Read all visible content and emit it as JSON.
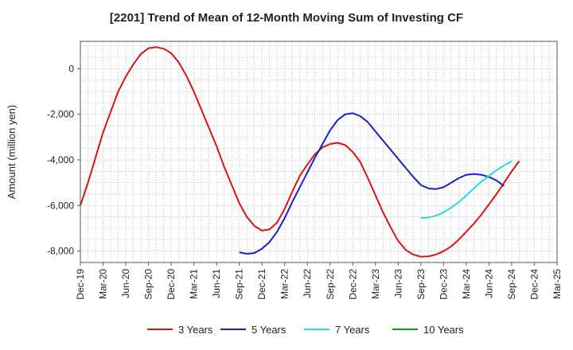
{
  "chart_data": {
    "type": "line",
    "title": "[2201]  Trend of Mean of 12-Month Moving Sum of Investing CF",
    "xlabel": "",
    "ylabel": "Amount (million yen)",
    "ylim": [
      -8500,
      1200
    ],
    "yticks": [
      0,
      -2000,
      -4000,
      -6000,
      -8000
    ],
    "ytick_labels": [
      "0",
      "-2,000",
      "-4,000",
      "-6,000",
      "-8,000"
    ],
    "x_categories": [
      "Dec-19",
      "Mar-20",
      "Jun-20",
      "Sep-20",
      "Dec-20",
      "Mar-21",
      "Jun-21",
      "Sep-21",
      "Dec-21",
      "Mar-22",
      "Jun-22",
      "Sep-22",
      "Dec-22",
      "Mar-23",
      "Jun-23",
      "Sep-23",
      "Dec-23",
      "Mar-24",
      "Jun-24",
      "Sep-24",
      "Dec-24",
      "Mar-25"
    ],
    "x_note": "x values are month indices from Dec-19 (0) to Mar-25 (63)",
    "grid": true,
    "legend_position": "bottom",
    "series": [
      {
        "name": "3 Years",
        "color": "#dd1111",
        "points": [
          [
            0,
            -6000
          ],
          [
            1,
            -5000
          ],
          [
            2,
            -3900
          ],
          [
            3,
            -2800
          ],
          [
            4,
            -1900
          ],
          [
            5,
            -1000
          ],
          [
            6,
            -350
          ],
          [
            7,
            200
          ],
          [
            8,
            650
          ],
          [
            9,
            900
          ],
          [
            10,
            950
          ],
          [
            11,
            880
          ],
          [
            12,
            680
          ],
          [
            13,
            280
          ],
          [
            14,
            -300
          ],
          [
            15,
            -1000
          ],
          [
            16,
            -1800
          ],
          [
            17,
            -2600
          ],
          [
            18,
            -3400
          ],
          [
            19,
            -4300
          ],
          [
            20,
            -5100
          ],
          [
            21,
            -5900
          ],
          [
            22,
            -6500
          ],
          [
            23,
            -6900
          ],
          [
            24,
            -7100
          ],
          [
            25,
            -7050
          ],
          [
            26,
            -6750
          ],
          [
            27,
            -6150
          ],
          [
            28,
            -5400
          ],
          [
            29,
            -4700
          ],
          [
            30,
            -4200
          ],
          [
            31,
            -3750
          ],
          [
            32,
            -3450
          ],
          [
            33,
            -3300
          ],
          [
            34,
            -3250
          ],
          [
            35,
            -3350
          ],
          [
            36,
            -3650
          ],
          [
            37,
            -4100
          ],
          [
            38,
            -4800
          ],
          [
            39,
            -5550
          ],
          [
            40,
            -6300
          ],
          [
            41,
            -6950
          ],
          [
            42,
            -7550
          ],
          [
            43,
            -7950
          ],
          [
            44,
            -8150
          ],
          [
            45,
            -8250
          ],
          [
            46,
            -8230
          ],
          [
            47,
            -8150
          ],
          [
            48,
            -8000
          ],
          [
            49,
            -7800
          ],
          [
            50,
            -7500
          ],
          [
            51,
            -7150
          ],
          [
            52,
            -6800
          ],
          [
            53,
            -6400
          ],
          [
            54,
            -5950
          ],
          [
            55,
            -5500
          ],
          [
            56,
            -5000
          ],
          [
            57,
            -4500
          ],
          [
            58,
            -4050
          ]
        ]
      },
      {
        "name": "5 Years",
        "color": "#1122cc",
        "points": [
          [
            21,
            -8050
          ],
          [
            22,
            -8120
          ],
          [
            23,
            -8080
          ],
          [
            24,
            -7900
          ],
          [
            25,
            -7600
          ],
          [
            26,
            -7150
          ],
          [
            27,
            -6550
          ],
          [
            28,
            -5850
          ],
          [
            29,
            -5200
          ],
          [
            30,
            -4550
          ],
          [
            31,
            -3900
          ],
          [
            32,
            -3300
          ],
          [
            33,
            -2700
          ],
          [
            34,
            -2250
          ],
          [
            35,
            -2000
          ],
          [
            36,
            -1950
          ],
          [
            37,
            -2080
          ],
          [
            38,
            -2350
          ],
          [
            39,
            -2750
          ],
          [
            40,
            -3150
          ],
          [
            41,
            -3550
          ],
          [
            42,
            -3950
          ],
          [
            43,
            -4350
          ],
          [
            44,
            -4750
          ],
          [
            45,
            -5100
          ],
          [
            46,
            -5250
          ],
          [
            47,
            -5280
          ],
          [
            48,
            -5200
          ],
          [
            49,
            -5000
          ],
          [
            50,
            -4800
          ],
          [
            51,
            -4650
          ],
          [
            52,
            -4620
          ],
          [
            53,
            -4650
          ],
          [
            54,
            -4750
          ],
          [
            55,
            -4900
          ],
          [
            56,
            -5150
          ]
        ]
      },
      {
        "name": "7 Years",
        "color": "#22dddd",
        "points": [
          [
            45,
            -6550
          ],
          [
            46,
            -6520
          ],
          [
            47,
            -6450
          ],
          [
            48,
            -6300
          ],
          [
            49,
            -6100
          ],
          [
            50,
            -5850
          ],
          [
            51,
            -5550
          ],
          [
            52,
            -5250
          ],
          [
            53,
            -4950
          ],
          [
            54,
            -4700
          ],
          [
            55,
            -4450
          ],
          [
            56,
            -4250
          ],
          [
            57,
            -4050
          ]
        ]
      },
      {
        "name": "10 Years",
        "color": "#119911",
        "points": []
      }
    ]
  }
}
